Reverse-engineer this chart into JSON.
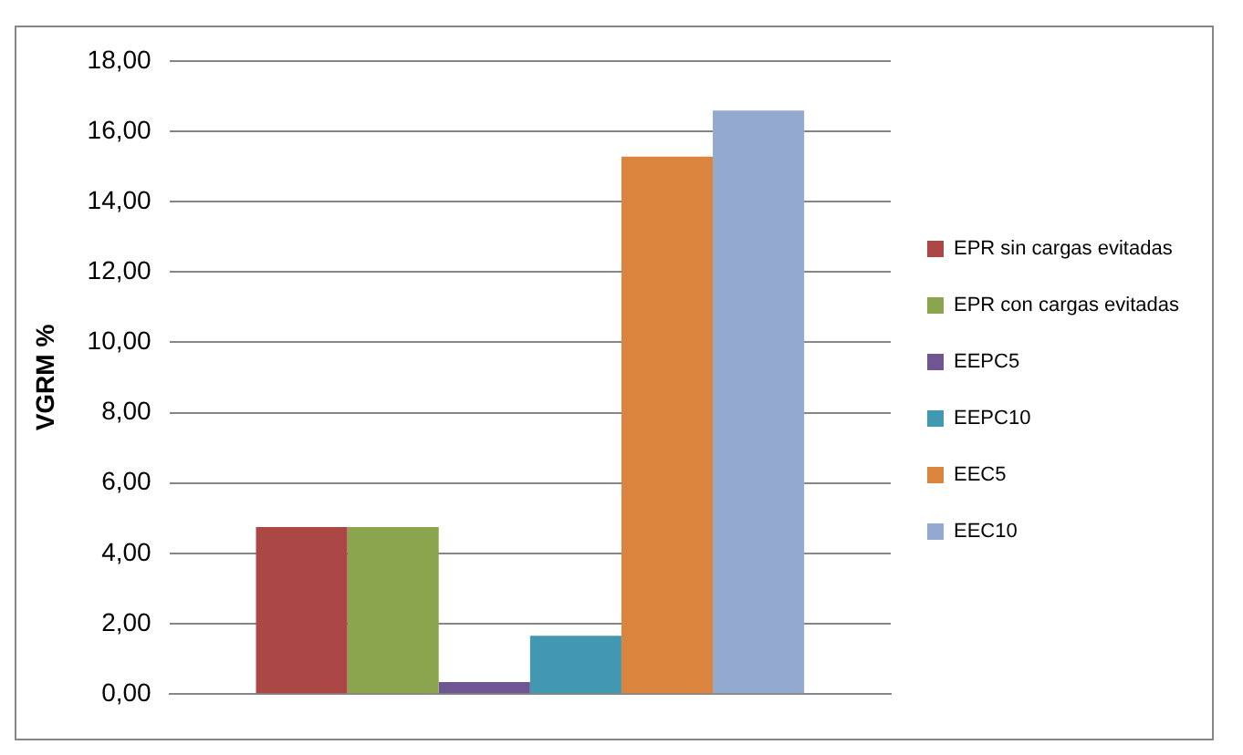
{
  "chart_data": {
    "type": "bar",
    "ylabel": "VGRM %",
    "categories": [
      null
    ],
    "series": [
      {
        "name": "EPR sin cargas evitadas",
        "color": "#ab4744",
        "values": [
          4.75
        ]
      },
      {
        "name": "EPR con cargas evitadas",
        "color": "#8ba54e",
        "values": [
          4.75
        ]
      },
      {
        "name": "EEPC5",
        "color": "#6f5592",
        "values": [
          0.34
        ]
      },
      {
        "name": "EEPC10",
        "color": "#4298b0",
        "values": [
          1.66
        ]
      },
      {
        "name": "EEC5",
        "color": "#db843d",
        "values": [
          15.28
        ]
      },
      {
        "name": "EEC10",
        "color": "#93a9cf",
        "values": [
          16.59
        ]
      }
    ],
    "ylim": [
      0,
      18
    ],
    "yticks": [
      {
        "value": 0,
        "label": "0,00"
      },
      {
        "value": 2,
        "label": "2,00"
      },
      {
        "value": 4,
        "label": "4,00"
      },
      {
        "value": 6,
        "label": "6,00"
      },
      {
        "value": 8,
        "label": "8,00"
      },
      {
        "value": 10,
        "label": "10,00"
      },
      {
        "value": 12,
        "label": "12,00"
      },
      {
        "value": 14,
        "label": "14,00"
      },
      {
        "value": 16,
        "label": "16,00"
      },
      {
        "value": 18,
        "label": "18,00"
      }
    ],
    "grid": "y",
    "legend": "right"
  }
}
